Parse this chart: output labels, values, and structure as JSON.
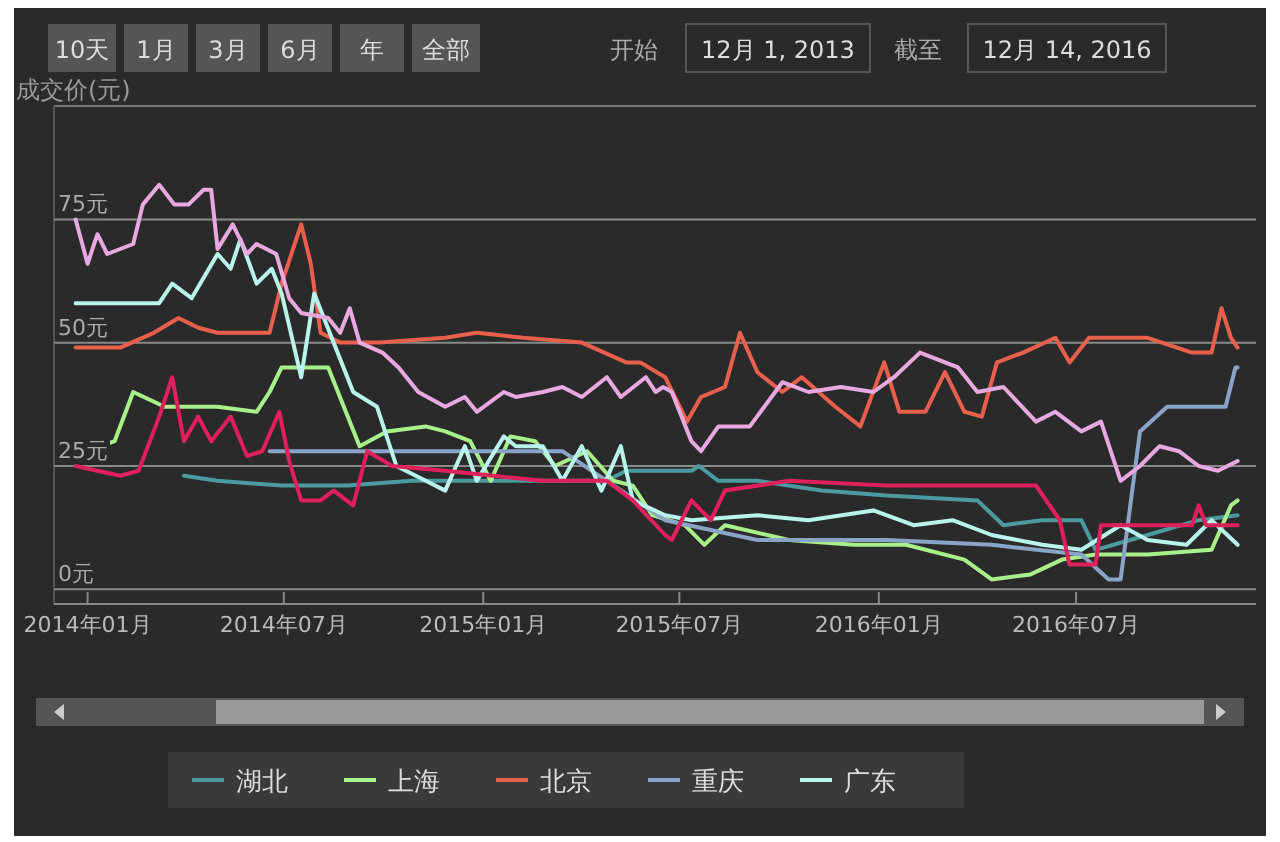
{
  "chart_data": {
    "type": "line",
    "ylabel": "成交价(元)",
    "annotations": [
      "10天",
      "1月",
      "3月",
      "6月",
      "年",
      "全部",
      "开始",
      "12月 1, 2013",
      "截至",
      "12月 14, 2016"
    ],
    "xlim": [
      "2013-12-01",
      "2016-12-14"
    ],
    "xticks": [
      {
        "value": "2014-01-01",
        "label": "2014年01月"
      },
      {
        "value": "2014-07-01",
        "label": "2014年07月"
      },
      {
        "value": "2015-01-01",
        "label": "2015年01月"
      },
      {
        "value": "2015-07-01",
        "label": "2015年07月"
      },
      {
        "value": "2016-01-01",
        "label": "2016年01月"
      },
      {
        "value": "2016-07-01",
        "label": "2016年07月"
      }
    ],
    "ylim": [
      -3,
      98
    ],
    "yticks": [
      {
        "value": 0,
        "label": "0元"
      },
      {
        "value": 25,
        "label": "25元"
      },
      {
        "value": 50,
        "label": "50元"
      },
      {
        "value": 75,
        "label": "75元"
      }
    ],
    "grid": "y",
    "legend": "bottom",
    "line_style": "solid",
    "marker": "none",
    "series": [
      {
        "name": "湖北",
        "color": "#4a9aa0",
        "x": [
          "2014-03-31",
          "2014-05-01",
          "2014-06-29",
          "2014-08-29",
          "2014-10-27",
          "2014-12-26",
          "2015-02-25",
          "2015-04-25",
          "2015-05-13",
          "2015-07-12",
          "2015-07-19",
          "2015-08-06",
          "2015-09-11",
          "2015-11-09",
          "2016-01-08",
          "2016-04-01",
          "2016-04-25",
          "2016-05-31",
          "2016-07-06",
          "2016-07-19",
          "2016-09-05",
          "2016-10-22",
          "2016-11-27"
        ],
        "values": [
          23,
          22,
          21,
          21,
          22,
          22,
          22,
          22,
          24,
          24,
          25,
          22,
          22,
          20,
          19,
          18,
          13,
          14,
          14,
          8,
          11,
          14,
          15
        ]
      },
      {
        "name": "上海",
        "color": "#a8f08a",
        "x": [
          "2013-12-21",
          "2014-01-01",
          "2014-01-26",
          "2014-02-12",
          "2014-03-13",
          "2014-05-01",
          "2014-06-06",
          "2014-06-18",
          "2014-06-29",
          "2014-08-11",
          "2014-09-09",
          "2014-10-04",
          "2014-11-09",
          "2014-11-27",
          "2014-12-20",
          "2015-01-08",
          "2015-01-26",
          "2015-02-18",
          "2015-03-08",
          "2015-04-07",
          "2015-05-01",
          "2015-05-19",
          "2015-06-06",
          "2015-07-06",
          "2015-07-24",
          "2015-08-12",
          "2015-10-10",
          "2015-12-09",
          "2016-01-26",
          "2016-03-20",
          "2016-04-14",
          "2016-05-20",
          "2016-06-18",
          "2016-07-19",
          "2016-09-05",
          "2016-11-03",
          "2016-11-21",
          "2016-11-27"
        ],
        "values": [
          27,
          28,
          30,
          40,
          37,
          37,
          36,
          40,
          45,
          45,
          29,
          32,
          33,
          32,
          30,
          22,
          31,
          30,
          25,
          28,
          22,
          21,
          15,
          13,
          9,
          13,
          10,
          9,
          9,
          6,
          2,
          3,
          6,
          7,
          7,
          8,
          17,
          18
        ]
      },
      {
        "name": "北京",
        "color": "#e8604c",
        "x": [
          "2013-12-21",
          "2014-01-31",
          "2014-03-03",
          "2014-03-26",
          "2014-04-13",
          "2014-05-01",
          "2014-06-18",
          "2014-06-29",
          "2014-07-17",
          "2014-07-26",
          "2014-08-04",
          "2014-08-22",
          "2014-09-27",
          "2014-11-27",
          "2014-12-26",
          "2015-02-07",
          "2015-04-02",
          "2015-05-13",
          "2015-05-26",
          "2015-06-18",
          "2015-07-08",
          "2015-07-21",
          "2015-08-12",
          "2015-08-26",
          "2015-09-11",
          "2015-10-04",
          "2015-10-22",
          "2015-11-22",
          "2015-12-15",
          "2016-01-06",
          "2016-01-20",
          "2016-02-13",
          "2016-03-02",
          "2016-03-20",
          "2016-04-05",
          "2016-04-19",
          "2016-05-13",
          "2016-06-12",
          "2016-06-25",
          "2016-07-13",
          "2016-08-11",
          "2016-09-05",
          "2016-10-16",
          "2016-11-03",
          "2016-11-12",
          "2016-11-21",
          "2016-11-27"
        ],
        "values": [
          49,
          49,
          52,
          55,
          53,
          52,
          52,
          62,
          74,
          66,
          52,
          50,
          50,
          51,
          52,
          51,
          50,
          46,
          46,
          43,
          34,
          39,
          41,
          52,
          44,
          40,
          43,
          37,
          33,
          46,
          36,
          36,
          44,
          36,
          35,
          46,
          48,
          51,
          46,
          51,
          51,
          51,
          48,
          48,
          57,
          51,
          49
        ]
      },
      {
        "name": "重庆",
        "color": "#8aa4c8",
        "x": [
          "2014-06-18",
          "2015-03-15",
          "2015-04-25",
          "2015-06-18",
          "2015-09-11",
          "2016-01-08",
          "2016-04-14",
          "2016-07-06",
          "2016-07-31",
          "2016-08-11",
          "2016-08-29",
          "2016-09-23",
          "2016-11-16",
          "2016-11-25",
          "2016-11-27"
        ],
        "values": [
          28,
          28,
          22,
          14,
          10,
          10,
          9,
          7,
          2,
          2,
          32,
          37,
          37,
          45,
          45
        ]
      },
      {
        "name": "广东",
        "color": "#b8f4ec",
        "x": [
          "2013-12-21",
          "2014-03-08",
          "2014-03-20",
          "2014-04-07",
          "2014-05-01",
          "2014-05-13",
          "2014-05-22",
          "2014-06-06",
          "2014-06-20",
          "2014-06-29",
          "2014-07-17",
          "2014-07-29",
          "2014-08-16",
          "2014-09-03",
          "2014-09-25",
          "2014-10-13",
          "2014-11-09",
          "2014-11-27",
          "2014-12-15",
          "2014-12-26",
          "2015-01-20",
          "2015-01-31",
          "2015-02-25",
          "2015-03-15",
          "2015-04-02",
          "2015-04-20",
          "2015-05-08",
          "2015-05-19",
          "2015-06-18",
          "2015-07-12",
          "2015-09-11",
          "2015-10-28",
          "2015-12-27",
          "2016-02-02",
          "2016-03-09",
          "2016-04-14",
          "2016-05-31",
          "2016-07-06",
          "2016-08-11",
          "2016-09-05",
          "2016-10-11",
          "2016-11-03",
          "2016-11-27"
        ],
        "values": [
          58,
          58,
          62,
          59,
          68,
          65,
          71,
          62,
          65,
          60,
          43,
          60,
          50,
          40,
          37,
          25,
          22,
          20,
          29,
          22,
          31,
          29,
          29,
          22,
          29,
          20,
          29,
          18,
          15,
          14,
          15,
          14,
          16,
          13,
          14,
          11,
          9,
          8,
          13,
          10,
          9,
          14,
          9
        ]
      },
      {
        "color": "#e8a8e0",
        "x": [
          "2013-12-21",
          "2014-01-01",
          "2014-01-10",
          "2014-01-19",
          "2014-02-12",
          "2014-02-21",
          "2014-03-08",
          "2014-03-22",
          "2014-04-04",
          "2014-04-18",
          "2014-04-25",
          "2014-05-01",
          "2014-05-15",
          "2014-05-28",
          "2014-06-06",
          "2014-06-24",
          "2014-07-06",
          "2014-07-17",
          "2014-08-11",
          "2014-08-22",
          "2014-08-31",
          "2014-09-09",
          "2014-09-30",
          "2014-10-15",
          "2014-11-02",
          "2014-11-27",
          "2014-12-15",
          "2014-12-26",
          "2015-01-20",
          "2015-01-31",
          "2015-02-25",
          "2015-03-15",
          "2015-04-02",
          "2015-04-25",
          "2015-05-08",
          "2015-05-31",
          "2015-06-09",
          "2015-06-16",
          "2015-06-24",
          "2015-07-12",
          "2015-07-21",
          "2015-08-06",
          "2015-09-04",
          "2015-10-04",
          "2015-10-28",
          "2015-11-27",
          "2015-12-27",
          "2016-01-15",
          "2016-02-08",
          "2016-03-02",
          "2016-03-14",
          "2016-04-01",
          "2016-04-25",
          "2016-05-25",
          "2016-06-12",
          "2016-07-06",
          "2016-07-24",
          "2016-08-11",
          "2016-08-29",
          "2016-09-16",
          "2016-10-04",
          "2016-10-22",
          "2016-11-09",
          "2016-11-27"
        ],
        "values": [
          75,
          66,
          72,
          68,
          70,
          78,
          82,
          78,
          78,
          81,
          81,
          69,
          74,
          68,
          70,
          68,
          59,
          56,
          55,
          52,
          57,
          50,
          48,
          45,
          40,
          37,
          39,
          36,
          40,
          39,
          40,
          41,
          39,
          43,
          39,
          43,
          40,
          41,
          40,
          30,
          28,
          33,
          33,
          42,
          40,
          41,
          40,
          43,
          48,
          46,
          45,
          40,
          41,
          34,
          36,
          32,
          34,
          22,
          25,
          29,
          28,
          25,
          24,
          26
        ]
      },
      {
        "color": "#e0205a",
        "x": [
          "2013-12-21",
          "2014-01-31",
          "2014-02-17",
          "2014-03-08",
          "2014-03-20",
          "2014-03-31",
          "2014-04-13",
          "2014-04-25",
          "2014-05-13",
          "2014-05-28",
          "2014-06-11",
          "2014-06-27",
          "2014-07-06",
          "2014-07-17",
          "2014-08-04",
          "2014-08-16",
          "2014-09-03",
          "2014-09-16",
          "2014-10-09",
          "2014-11-27",
          "2015-02-25",
          "2015-04-25",
          "2015-05-19",
          "2015-06-18",
          "2015-06-24",
          "2015-07-12",
          "2015-07-30",
          "2015-08-12",
          "2015-10-10",
          "2016-01-08",
          "2016-05-25",
          "2016-06-16",
          "2016-06-25",
          "2016-07-19",
          "2016-07-24",
          "2016-09-05",
          "2016-10-16",
          "2016-10-22",
          "2016-10-29",
          "2016-11-27"
        ],
        "values": [
          25,
          23,
          24,
          35,
          43,
          30,
          35,
          30,
          35,
          27,
          28,
          36,
          26,
          18,
          18,
          20,
          17,
          28,
          25,
          24,
          22,
          22,
          18,
          11,
          10,
          18,
          14,
          20,
          22,
          21,
          21,
          14,
          5,
          5,
          13,
          13,
          13,
          17,
          13,
          13
        ]
      }
    ]
  }
}
